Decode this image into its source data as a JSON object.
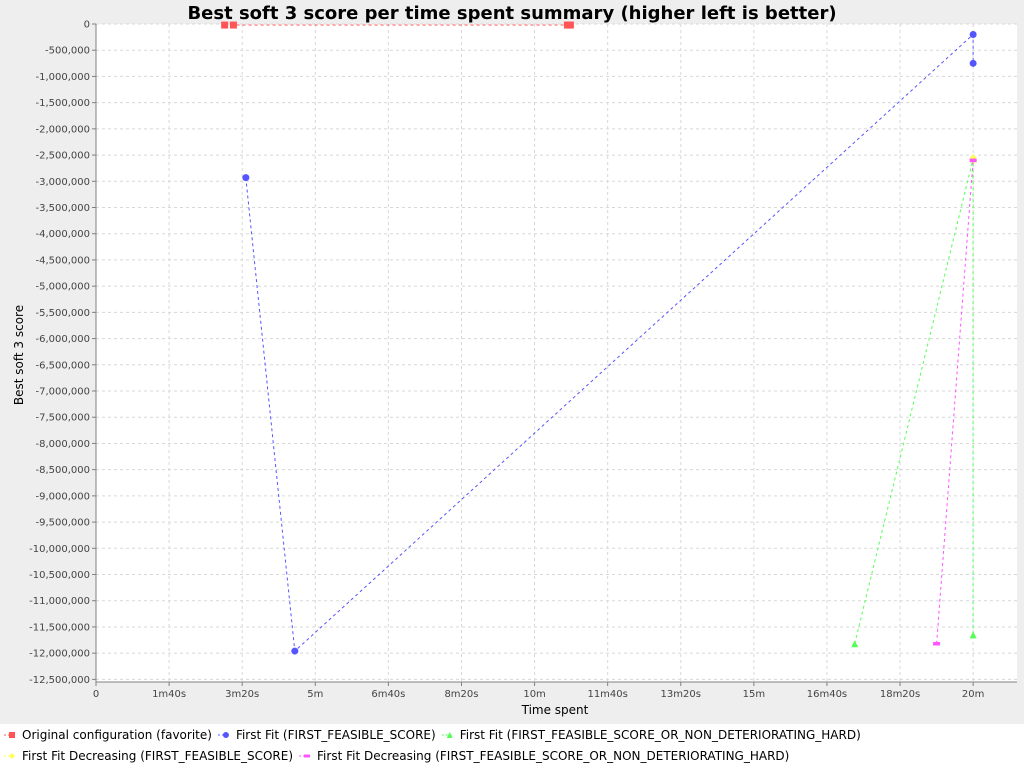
{
  "chart_data": {
    "type": "scatter",
    "title": "Best soft 3 score per time spent summary (higher left is better)",
    "xlabel": "Time spent",
    "ylabel": "Best soft 3 score",
    "xlim": [
      0,
      1260
    ],
    "ylim": [
      -12550000,
      0
    ],
    "x_ticks": [
      {
        "value": 0,
        "label": "0"
      },
      {
        "value": 100,
        "label": "1m40s"
      },
      {
        "value": 200,
        "label": "3m20s"
      },
      {
        "value": 300,
        "label": "5m"
      },
      {
        "value": 400,
        "label": "6m40s"
      },
      {
        "value": 500,
        "label": "8m20s"
      },
      {
        "value": 600,
        "label": "10m"
      },
      {
        "value": 700,
        "label": "11m40s"
      },
      {
        "value": 800,
        "label": "13m20s"
      },
      {
        "value": 900,
        "label": "15m"
      },
      {
        "value": 1000,
        "label": "16m40s"
      },
      {
        "value": 1100,
        "label": "18m20s"
      },
      {
        "value": 1200,
        "label": "20m"
      }
    ],
    "y_ticks": [
      {
        "value": 0,
        "label": "0"
      },
      {
        "value": -500000,
        "label": "-500,000"
      },
      {
        "value": -1000000,
        "label": "-1,000,000"
      },
      {
        "value": -1500000,
        "label": "-1,500,000"
      },
      {
        "value": -2000000,
        "label": "-2,000,000"
      },
      {
        "value": -2500000,
        "label": "-2,500,000"
      },
      {
        "value": -3000000,
        "label": "-3,000,000"
      },
      {
        "value": -3500000,
        "label": "-3,500,000"
      },
      {
        "value": -4000000,
        "label": "-4,000,000"
      },
      {
        "value": -4500000,
        "label": "-4,500,000"
      },
      {
        "value": -5000000,
        "label": "-5,000,000"
      },
      {
        "value": -5500000,
        "label": "-5,500,000"
      },
      {
        "value": -6000000,
        "label": "-6,000,000"
      },
      {
        "value": -6500000,
        "label": "-6,500,000"
      },
      {
        "value": -7000000,
        "label": "-7,000,000"
      },
      {
        "value": -7500000,
        "label": "-7,500,000"
      },
      {
        "value": -8000000,
        "label": "-8,000,000"
      },
      {
        "value": -8500000,
        "label": "-8,500,000"
      },
      {
        "value": -9000000,
        "label": "-9,000,000"
      },
      {
        "value": -9500000,
        "label": "-9,500,000"
      },
      {
        "value": -10000000,
        "label": "-10,000,000"
      },
      {
        "value": -10500000,
        "label": "-10,500,000"
      },
      {
        "value": -11000000,
        "label": "-11,000,000"
      },
      {
        "value": -11500000,
        "label": "-11,500,000"
      },
      {
        "value": -12000000,
        "label": "-12,000,000"
      },
      {
        "value": -12500000,
        "label": "-12,500,000"
      }
    ],
    "grid": true,
    "legend_position": "bottom",
    "series": [
      {
        "name": "Original configuration (favorite)",
        "color": "#ff5555",
        "marker": "square",
        "points": [
          {
            "x": 176,
            "y": -20000
          },
          {
            "x": 188,
            "y": -20000
          },
          {
            "x": 645,
            "y": -20000
          },
          {
            "x": 649,
            "y": -20000
          }
        ]
      },
      {
        "name": "First Fit (FIRST_FEASIBLE_SCORE)",
        "color": "#5555ff",
        "marker": "circle",
        "points": [
          {
            "x": 205,
            "y": -2930000
          },
          {
            "x": 272,
            "y": -11960000
          },
          {
            "x": 1200,
            "y": -200000
          },
          {
            "x": 1200,
            "y": -750000
          }
        ]
      },
      {
        "name": "First Fit (FIRST_FEASIBLE_SCORE_OR_NON_DETERIORATING_HARD)",
        "color": "#55ff55",
        "marker": "triangle",
        "points": [
          {
            "x": 1038,
            "y": -11820000
          },
          {
            "x": 1200,
            "y": -2570000
          },
          {
            "x": 1200,
            "y": -11650000
          }
        ]
      },
      {
        "name": "First Fit Decreasing (FIRST_FEASIBLE_SCORE)",
        "color": "#ffff55",
        "marker": "diamond",
        "points": [
          {
            "x": 1200,
            "y": -2550000
          },
          {
            "x": 1201,
            "y": -2600000
          }
        ]
      },
      {
        "name": "First Fit Decreasing (FIRST_FEASIBLE_SCORE_OR_NON_DETERIORATING_HARD)",
        "color": "#ff55ff",
        "marker": "rect",
        "points": [
          {
            "x": 1150,
            "y": -11820000
          },
          {
            "x": 1200,
            "y": -2600000
          }
        ]
      }
    ]
  }
}
